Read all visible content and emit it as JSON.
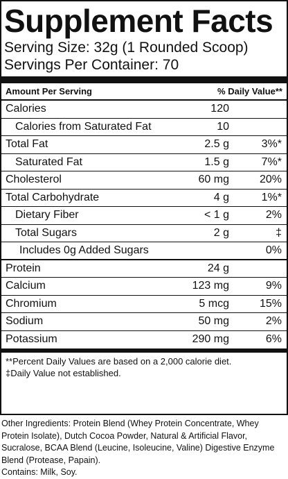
{
  "title": "Supplement Facts",
  "serving_size": "Serving Size: 32g (1 Rounded Scoop)",
  "servings_per_container": "Servings Per Container: 70",
  "header": {
    "amount_per_serving": "Amount Per Serving",
    "daily_value": "% Daily Value**"
  },
  "rows": [
    {
      "name": "Calories",
      "amount": "120",
      "dv": ""
    },
    {
      "name": "Calories from Saturated Fat",
      "amount": "10",
      "dv": ""
    },
    {
      "name": "Total Fat",
      "amount": "2.5 g",
      "dv": "3%*"
    },
    {
      "name": "Saturated Fat",
      "amount": "1.5 g",
      "dv": "7%*"
    },
    {
      "name": "Cholesterol",
      "amount": "60 mg",
      "dv": "20%"
    },
    {
      "name": "Total Carbohydrate",
      "amount": "4 g",
      "dv": "1%*"
    },
    {
      "name": "Dietary Fiber",
      "amount": "< 1 g",
      "dv": "2%"
    },
    {
      "name": "Total Sugars",
      "amount": "2 g",
      "dv": "‡"
    },
    {
      "name": "Includes 0g Added Sugars",
      "amount": "",
      "dv": "0%"
    },
    {
      "name": "Protein",
      "amount": "24 g",
      "dv": ""
    },
    {
      "name": "Calcium",
      "amount": "123 mg",
      "dv": "9%"
    },
    {
      "name": "Chromium",
      "amount": "5 mcg",
      "dv": "15%"
    },
    {
      "name": "Sodium",
      "amount": "50 mg",
      "dv": "2%"
    },
    {
      "name": "Potassium",
      "amount": "290 mg",
      "dv": "6%"
    }
  ],
  "footnotes": [
    "**Percent Daily Values are based on a 2,000 calorie diet.",
    "‡Daily Value not established."
  ],
  "other_ingredients": "Other Ingredients: Protein Blend (Whey Protein Concentrate, Whey Protein Isolate), Dutch Cocoa Powder, Natural & Artificial Flavor, Sucralose, BCAA Blend (Leucine, Isoleucine, Valine) Digestive Enzyme Blend (Protease, Papain).",
  "contains": "Contains: Milk, Soy."
}
